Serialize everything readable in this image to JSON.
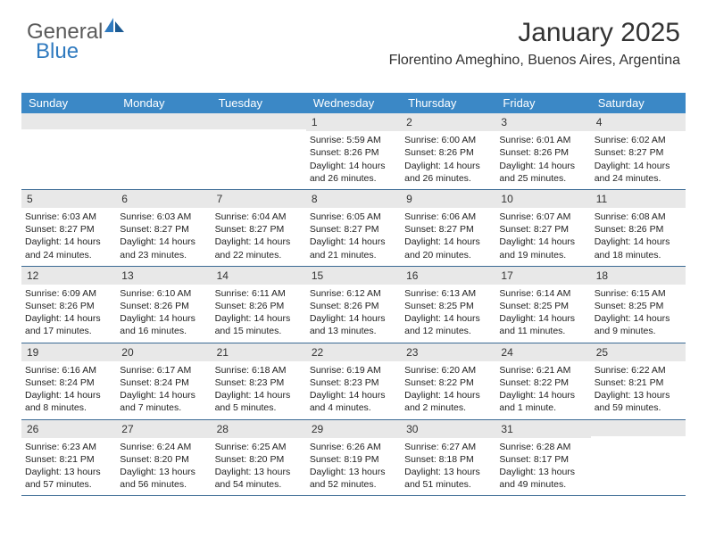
{
  "brand": {
    "general": "General",
    "blue": "Blue"
  },
  "header": {
    "month_title": "January 2025",
    "location": "Florentino Ameghino, Buenos Aires, Argentina"
  },
  "colors": {
    "header_bg": "#3b88c6",
    "row_border": "#3b6a94",
    "daynum_bg": "#e8e8e8",
    "logo_blue": "#2f7abf",
    "logo_gray": "#5a5a5a"
  },
  "days_of_week": [
    "Sunday",
    "Monday",
    "Tuesday",
    "Wednesday",
    "Thursday",
    "Friday",
    "Saturday"
  ],
  "weeks": [
    [
      {
        "empty": true
      },
      {
        "empty": true
      },
      {
        "empty": true
      },
      {
        "num": "1",
        "sunrise": "Sunrise: 5:59 AM",
        "sunset": "Sunset: 8:26 PM",
        "daylight": "Daylight: 14 hours and 26 minutes."
      },
      {
        "num": "2",
        "sunrise": "Sunrise: 6:00 AM",
        "sunset": "Sunset: 8:26 PM",
        "daylight": "Daylight: 14 hours and 26 minutes."
      },
      {
        "num": "3",
        "sunrise": "Sunrise: 6:01 AM",
        "sunset": "Sunset: 8:26 PM",
        "daylight": "Daylight: 14 hours and 25 minutes."
      },
      {
        "num": "4",
        "sunrise": "Sunrise: 6:02 AM",
        "sunset": "Sunset: 8:27 PM",
        "daylight": "Daylight: 14 hours and 24 minutes."
      }
    ],
    [
      {
        "num": "5",
        "sunrise": "Sunrise: 6:03 AM",
        "sunset": "Sunset: 8:27 PM",
        "daylight": "Daylight: 14 hours and 24 minutes."
      },
      {
        "num": "6",
        "sunrise": "Sunrise: 6:03 AM",
        "sunset": "Sunset: 8:27 PM",
        "daylight": "Daylight: 14 hours and 23 minutes."
      },
      {
        "num": "7",
        "sunrise": "Sunrise: 6:04 AM",
        "sunset": "Sunset: 8:27 PM",
        "daylight": "Daylight: 14 hours and 22 minutes."
      },
      {
        "num": "8",
        "sunrise": "Sunrise: 6:05 AM",
        "sunset": "Sunset: 8:27 PM",
        "daylight": "Daylight: 14 hours and 21 minutes."
      },
      {
        "num": "9",
        "sunrise": "Sunrise: 6:06 AM",
        "sunset": "Sunset: 8:27 PM",
        "daylight": "Daylight: 14 hours and 20 minutes."
      },
      {
        "num": "10",
        "sunrise": "Sunrise: 6:07 AM",
        "sunset": "Sunset: 8:27 PM",
        "daylight": "Daylight: 14 hours and 19 minutes."
      },
      {
        "num": "11",
        "sunrise": "Sunrise: 6:08 AM",
        "sunset": "Sunset: 8:26 PM",
        "daylight": "Daylight: 14 hours and 18 minutes."
      }
    ],
    [
      {
        "num": "12",
        "sunrise": "Sunrise: 6:09 AM",
        "sunset": "Sunset: 8:26 PM",
        "daylight": "Daylight: 14 hours and 17 minutes."
      },
      {
        "num": "13",
        "sunrise": "Sunrise: 6:10 AM",
        "sunset": "Sunset: 8:26 PM",
        "daylight": "Daylight: 14 hours and 16 minutes."
      },
      {
        "num": "14",
        "sunrise": "Sunrise: 6:11 AM",
        "sunset": "Sunset: 8:26 PM",
        "daylight": "Daylight: 14 hours and 15 minutes."
      },
      {
        "num": "15",
        "sunrise": "Sunrise: 6:12 AM",
        "sunset": "Sunset: 8:26 PM",
        "daylight": "Daylight: 14 hours and 13 minutes."
      },
      {
        "num": "16",
        "sunrise": "Sunrise: 6:13 AM",
        "sunset": "Sunset: 8:25 PM",
        "daylight": "Daylight: 14 hours and 12 minutes."
      },
      {
        "num": "17",
        "sunrise": "Sunrise: 6:14 AM",
        "sunset": "Sunset: 8:25 PM",
        "daylight": "Daylight: 14 hours and 11 minutes."
      },
      {
        "num": "18",
        "sunrise": "Sunrise: 6:15 AM",
        "sunset": "Sunset: 8:25 PM",
        "daylight": "Daylight: 14 hours and 9 minutes."
      }
    ],
    [
      {
        "num": "19",
        "sunrise": "Sunrise: 6:16 AM",
        "sunset": "Sunset: 8:24 PM",
        "daylight": "Daylight: 14 hours and 8 minutes."
      },
      {
        "num": "20",
        "sunrise": "Sunrise: 6:17 AM",
        "sunset": "Sunset: 8:24 PM",
        "daylight": "Daylight: 14 hours and 7 minutes."
      },
      {
        "num": "21",
        "sunrise": "Sunrise: 6:18 AM",
        "sunset": "Sunset: 8:23 PM",
        "daylight": "Daylight: 14 hours and 5 minutes."
      },
      {
        "num": "22",
        "sunrise": "Sunrise: 6:19 AM",
        "sunset": "Sunset: 8:23 PM",
        "daylight": "Daylight: 14 hours and 4 minutes."
      },
      {
        "num": "23",
        "sunrise": "Sunrise: 6:20 AM",
        "sunset": "Sunset: 8:22 PM",
        "daylight": "Daylight: 14 hours and 2 minutes."
      },
      {
        "num": "24",
        "sunrise": "Sunrise: 6:21 AM",
        "sunset": "Sunset: 8:22 PM",
        "daylight": "Daylight: 14 hours and 1 minute."
      },
      {
        "num": "25",
        "sunrise": "Sunrise: 6:22 AM",
        "sunset": "Sunset: 8:21 PM",
        "daylight": "Daylight: 13 hours and 59 minutes."
      }
    ],
    [
      {
        "num": "26",
        "sunrise": "Sunrise: 6:23 AM",
        "sunset": "Sunset: 8:21 PM",
        "daylight": "Daylight: 13 hours and 57 minutes."
      },
      {
        "num": "27",
        "sunrise": "Sunrise: 6:24 AM",
        "sunset": "Sunset: 8:20 PM",
        "daylight": "Daylight: 13 hours and 56 minutes."
      },
      {
        "num": "28",
        "sunrise": "Sunrise: 6:25 AM",
        "sunset": "Sunset: 8:20 PM",
        "daylight": "Daylight: 13 hours and 54 minutes."
      },
      {
        "num": "29",
        "sunrise": "Sunrise: 6:26 AM",
        "sunset": "Sunset: 8:19 PM",
        "daylight": "Daylight: 13 hours and 52 minutes."
      },
      {
        "num": "30",
        "sunrise": "Sunrise: 6:27 AM",
        "sunset": "Sunset: 8:18 PM",
        "daylight": "Daylight: 13 hours and 51 minutes."
      },
      {
        "num": "31",
        "sunrise": "Sunrise: 6:28 AM",
        "sunset": "Sunset: 8:17 PM",
        "daylight": "Daylight: 13 hours and 49 minutes."
      },
      {
        "empty": true
      }
    ]
  ]
}
